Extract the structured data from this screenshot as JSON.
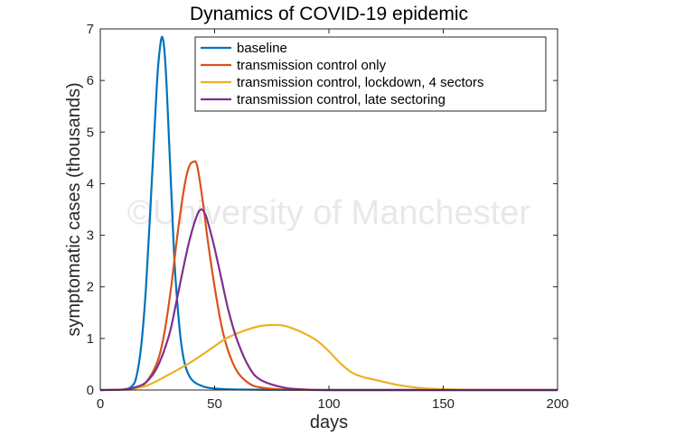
{
  "chart_data": {
    "type": "line",
    "title": "Dynamics of COVID-19 epidemic",
    "xlabel": "days",
    "ylabel": "symptomatic cases (thousands)",
    "xlim": [
      0,
      200
    ],
    "ylim": [
      0,
      7
    ],
    "xticks": [
      0,
      50,
      100,
      150,
      200
    ],
    "yticks": [
      0,
      1,
      2,
      3,
      4,
      5,
      6,
      7
    ],
    "grid": false,
    "legend_position": "top-right",
    "watermark": "©University of Manchester",
    "series": [
      {
        "name": "baseline",
        "color": "#0072BD",
        "x": [
          0,
          10,
          14,
          16,
          18,
          20,
          22,
          24,
          25,
          26,
          27,
          28,
          29,
          30,
          31,
          32,
          33,
          35,
          37,
          40,
          45,
          50,
          60,
          80,
          100,
          150,
          200
        ],
        "y": [
          0,
          0.01,
          0.08,
          0.3,
          0.9,
          2.0,
          3.6,
          5.3,
          6.1,
          6.6,
          6.85,
          6.6,
          5.9,
          4.9,
          3.9,
          2.9,
          2.1,
          1.05,
          0.5,
          0.2,
          0.07,
          0.03,
          0.01,
          0.003,
          0,
          0,
          0
        ]
      },
      {
        "name": "transmission control only",
        "color": "#D95319",
        "x": [
          0,
          10,
          15,
          20,
          25,
          28,
          31,
          34,
          37,
          39,
          41,
          42,
          43,
          45,
          47,
          50,
          53,
          56,
          60,
          65,
          70,
          80,
          100,
          150,
          200
        ],
        "y": [
          0,
          0.005,
          0.03,
          0.15,
          0.55,
          1.1,
          2.0,
          3.1,
          4.0,
          4.35,
          4.43,
          4.4,
          4.2,
          3.6,
          2.9,
          2.0,
          1.25,
          0.75,
          0.35,
          0.13,
          0.05,
          0.01,
          0,
          0,
          0
        ]
      },
      {
        "name": "transmission control, lockdown, 4 sectors",
        "color": "#EDB120",
        "x": [
          0,
          10,
          20,
          30,
          40,
          50,
          55,
          60,
          65,
          70,
          75,
          80,
          85,
          90,
          95,
          100,
          105,
          110,
          115,
          120,
          130,
          140,
          150,
          160,
          180,
          200
        ],
        "y": [
          0,
          0.01,
          0.08,
          0.3,
          0.55,
          0.85,
          1.0,
          1.1,
          1.18,
          1.24,
          1.26,
          1.25,
          1.18,
          1.08,
          0.95,
          0.75,
          0.52,
          0.34,
          0.25,
          0.2,
          0.1,
          0.04,
          0.015,
          0.005,
          0,
          0
        ]
      },
      {
        "name": "transmission control, late sectoring",
        "color": "#7E2F8E",
        "x": [
          0,
          10,
          15,
          20,
          25,
          30,
          33,
          36,
          39,
          42,
          44,
          46,
          48,
          50,
          53,
          56,
          60,
          65,
          70,
          80,
          90,
          100,
          150,
          200
        ],
        "y": [
          0,
          0.01,
          0.05,
          0.15,
          0.45,
          1.05,
          1.65,
          2.3,
          2.9,
          3.35,
          3.5,
          3.4,
          3.1,
          2.75,
          2.15,
          1.55,
          0.95,
          0.45,
          0.2,
          0.05,
          0.01,
          0,
          0,
          0
        ]
      }
    ]
  }
}
